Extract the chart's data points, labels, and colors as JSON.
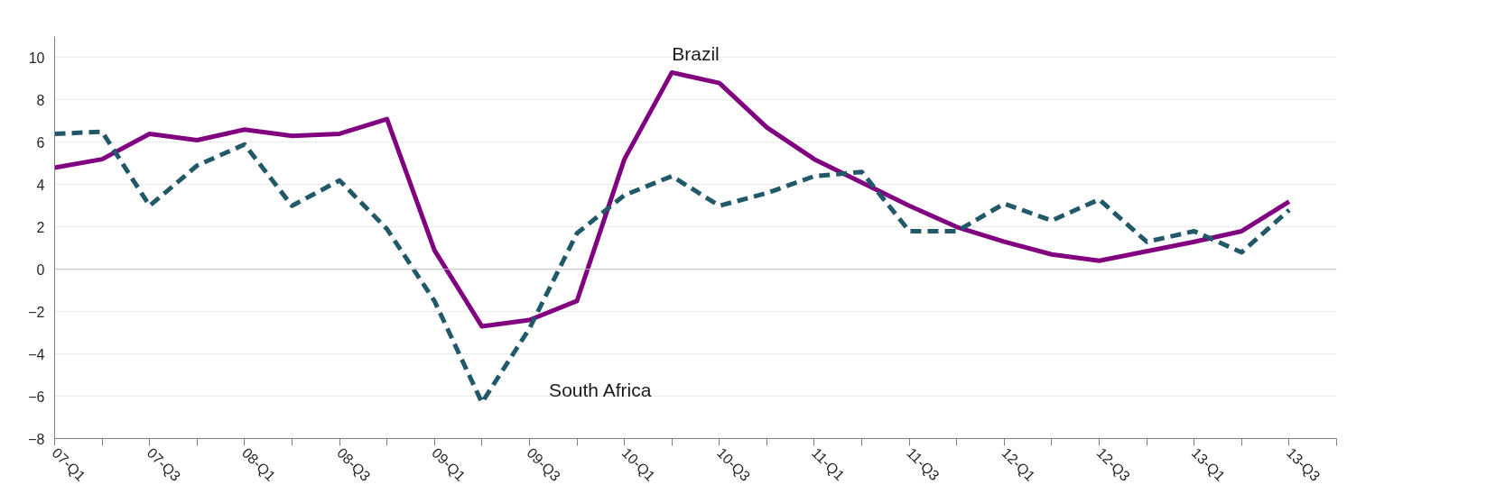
{
  "chart_data": {
    "type": "line",
    "categories": [
      "07-Q1",
      null,
      "07-Q3",
      null,
      "08-Q1",
      null,
      "08-Q3",
      null,
      "09-Q1",
      null,
      "09-Q3",
      null,
      "10-Q1",
      null,
      "10-Q3",
      null,
      "11-Q1",
      null,
      "11-Q3",
      null,
      "12-Q1",
      null,
      "12-Q3",
      null,
      "13-Q1",
      null,
      "13-Q3",
      null
    ],
    "series": [
      {
        "name": "Brazil",
        "color": "#800080",
        "line_style": "solid",
        "values": [
          4.8,
          5.2,
          6.4,
          6.1,
          6.6,
          6.3,
          6.4,
          7.1,
          0.9,
          -2.7,
          -2.4,
          -1.5,
          5.2,
          9.3,
          8.8,
          6.7,
          5.2,
          4.1,
          3.0,
          2.0,
          1.3,
          0.7,
          0.4,
          0.85,
          1.3,
          1.8,
          3.2,
          null
        ]
      },
      {
        "name": "South Africa",
        "color": "#215968",
        "line_style": "dashed",
        "values": [
          6.4,
          6.5,
          3.0,
          4.9,
          5.9,
          3.0,
          4.2,
          1.9,
          -1.5,
          -6.3,
          -2.8,
          1.7,
          3.5,
          4.4,
          3.0,
          3.6,
          4.4,
          4.6,
          1.8,
          1.8,
          3.1,
          2.3,
          3.3,
          1.3,
          1.8,
          0.8,
          2.8,
          null
        ]
      }
    ],
    "ylim": [
      -8,
      11
    ],
    "yticks": [
      -8,
      -6,
      -4,
      -2,
      0,
      2,
      4,
      6,
      8,
      10
    ],
    "grid": "y",
    "marker": "none",
    "ref_lines": [
      {
        "axis": "y",
        "value": 0,
        "color": "#bfbfbf"
      }
    ]
  }
}
